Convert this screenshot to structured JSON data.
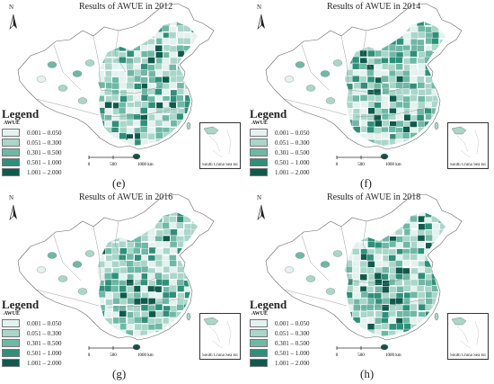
{
  "north_label": "N",
  "legend": {
    "title": "Legend",
    "subtitle": "AWUE",
    "classes": [
      {
        "label": "0.001 – 0.050",
        "color": "#e3f2ee"
      },
      {
        "label": "0.051 – 0.300",
        "color": "#a9d6c9"
      },
      {
        "label": "0.301 – 0.500",
        "color": "#6fb8a6"
      },
      {
        "label": "0.501 – 1.000",
        "color": "#2f8f7a"
      },
      {
        "label": "1.001 – 2.000",
        "color": "#0f5a4c"
      }
    ]
  },
  "scale_bar": {
    "ticks": [
      "0",
      "500",
      "1000 km"
    ]
  },
  "inset_label": "South China Sea Islands",
  "panels": [
    {
      "letter": "(e)",
      "title": "Results of AWUE in 2012"
    },
    {
      "letter": "(f)",
      "title": "Results of AWUE in 2014"
    },
    {
      "letter": "(g)",
      "title": "Results of AWUE in 2016"
    },
    {
      "letter": "(h)",
      "title": "Results of AWUE in 2018"
    }
  ]
}
